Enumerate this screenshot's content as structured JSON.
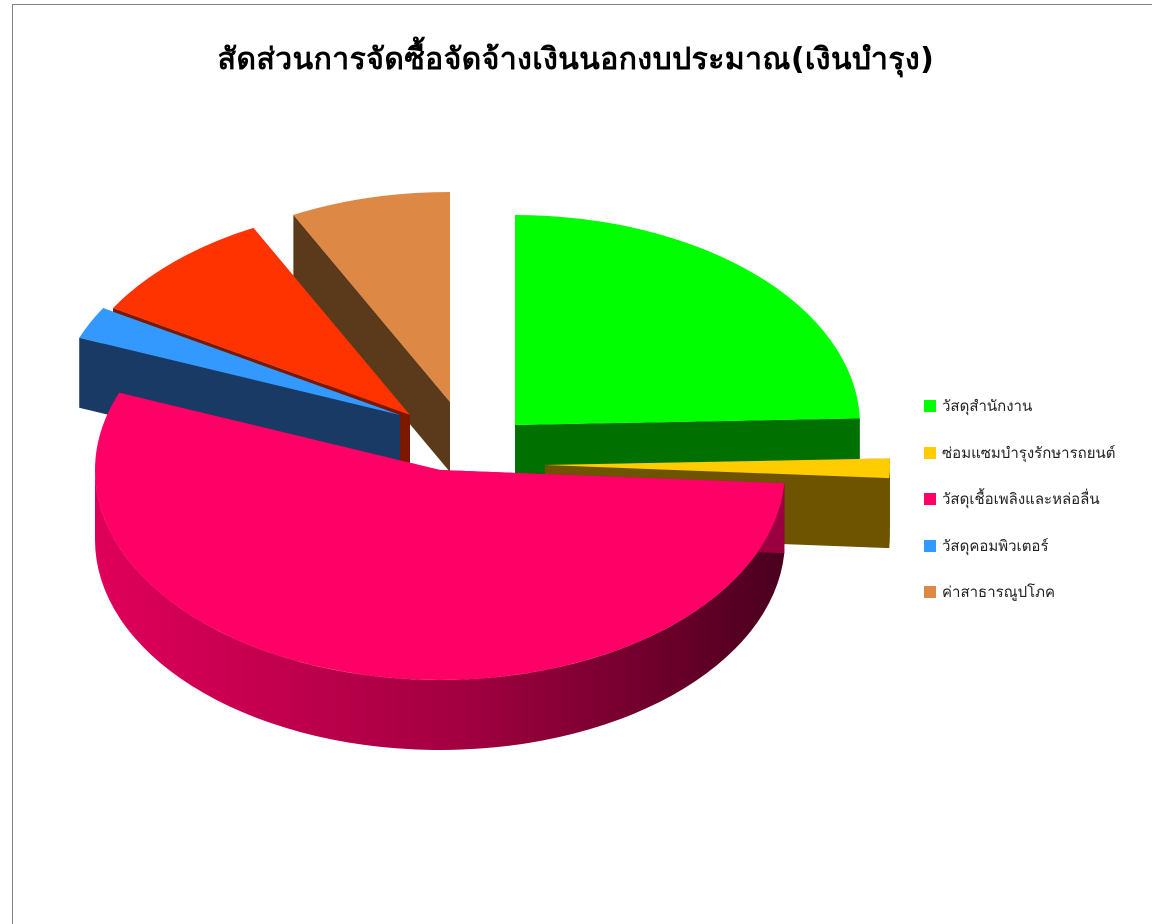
{
  "chart_data": {
    "type": "pie",
    "title": "สัดส่วนการจัดซื้อจัดจ้างเงินนอกงบประมาณ(เงินบำรุง)",
    "legend_position": "right",
    "grid": false,
    "three_d": true,
    "exploded": true,
    "slices": [
      {
        "label": "วัสดุสำนักงาน",
        "value": 24.5,
        "color": "#00ff00",
        "side": "#007000"
      },
      {
        "label": "ซ่อมแซมบำรุงรักษารถยนต์",
        "value": 1.5,
        "color": "#ffcc00",
        "side": "#6e5300"
      },
      {
        "label": "วัสดุเชื้อเพลิงและหล่อลื่น",
        "value": 55,
        "color": "#ff0066",
        "side": "#9a0040"
      },
      {
        "label": "วัสดุคอมพิวเตอร์",
        "value": 2.5,
        "color": "#3399ff",
        "side": "#1a3a66"
      },
      {
        "label": "",
        "value": 9,
        "color": "#ff3300",
        "side": "#7a1800"
      },
      {
        "label": "ค่าสาธารณูปโภค",
        "value": 7.5,
        "color": "#dd8844",
        "side": "#5a3a1a"
      }
    ]
  }
}
